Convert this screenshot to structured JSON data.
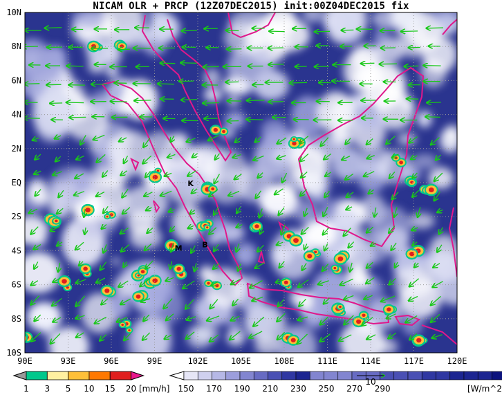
{
  "title": "NICAM OLR + PRCP (12Z07DEC2015) init:00Z04DEC2015 fix",
  "axes": {
    "lon_labels": [
      "90E",
      "93E",
      "96E",
      "99E",
      "102E",
      "105E",
      "108E",
      "111E",
      "114E",
      "117E",
      "120E"
    ],
    "lat_labels": [
      "10N",
      "8N",
      "6N",
      "4N",
      "2N",
      "EQ",
      "2S",
      "4S",
      "6S",
      "8S",
      "10S"
    ]
  },
  "markers": [
    {
      "label": "K",
      "lon": 101.3,
      "lat": -0.2
    },
    {
      "label": "M",
      "lon": 100.4,
      "lat": -4.0
    },
    {
      "label": "B",
      "lon": 102.3,
      "lat": -3.8
    }
  ],
  "precip_colorbar": {
    "levels": [
      "1",
      "3",
      "5",
      "10",
      "15",
      "20"
    ],
    "unit": "[mm/h]",
    "colors": [
      "#9a9a9a",
      "#00c88c",
      "#fff0a0",
      "#ffc038",
      "#ff7800",
      "#e01e1e",
      "#e8188c"
    ]
  },
  "olr_colorbar": {
    "levels": [
      "150",
      "170",
      "190",
      "210",
      "230",
      "250",
      "270",
      "290"
    ],
    "unit": "[W/m^2]",
    "colors": [
      "#ffffff",
      "#e6e6f6",
      "#cfd0ef",
      "#b6b8e6",
      "#9c9edc",
      "#8285d0",
      "#676bc3",
      "#4a50b4",
      "#2f37a2",
      "#1c2591",
      "#0c137e"
    ]
  },
  "vector_reference": {
    "label": "10"
  },
  "colors": {
    "wind": "#18c818",
    "coast": "#e0188c",
    "grid": "#888888"
  }
}
